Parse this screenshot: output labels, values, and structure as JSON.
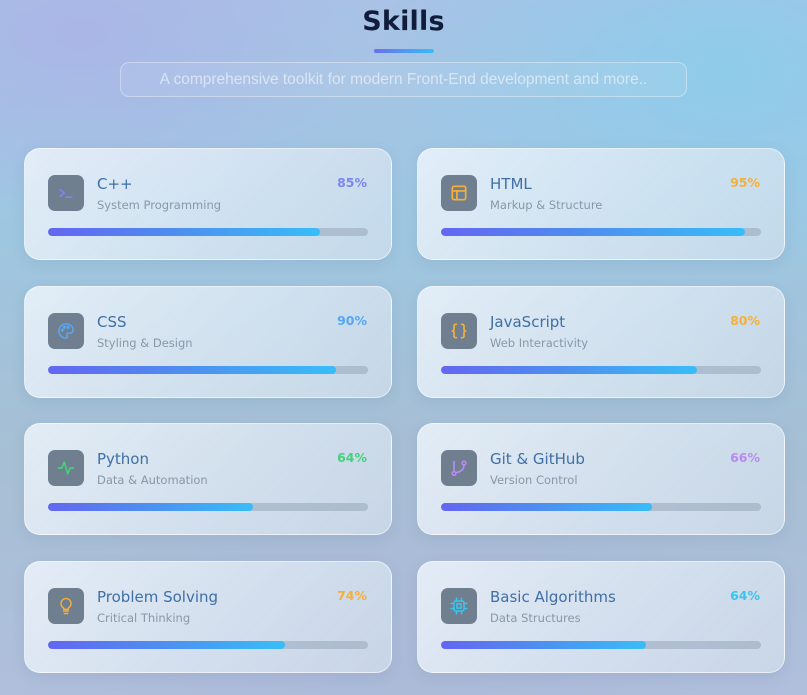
{
  "header": {
    "title": "Skills",
    "subtitle": "A comprehensive toolkit for modern Front-End development and more.."
  },
  "colors": {
    "title": "#111c3a",
    "bar_start": "#6366f1",
    "bar_end": "#38bdf8",
    "icon_bg": "#6f7f90",
    "skill_name": "#3f6fa5"
  },
  "skills": [
    {
      "name": "C++",
      "description": "System Programming",
      "percent_label": "85%",
      "level": 0.85,
      "icon": "terminal-icon",
      "color": "#7b86f0"
    },
    {
      "name": "HTML",
      "description": "Markup & Structure",
      "percent_label": "95%",
      "level": 0.95,
      "icon": "layout-icon",
      "color": "#f5b03a"
    },
    {
      "name": "CSS",
      "description": "Styling & Design",
      "percent_label": "90%",
      "level": 0.9,
      "icon": "palette-icon",
      "color": "#57a6f2"
    },
    {
      "name": "JavaScript",
      "description": "Web Interactivity",
      "percent_label": "80%",
      "level": 0.8,
      "icon": "braces-icon",
      "color": "#f5b03a"
    },
    {
      "name": "Python",
      "description": "Data & Automation",
      "percent_label": "64%",
      "level": 0.64,
      "icon": "activity-icon",
      "color": "#46d07e"
    },
    {
      "name": "Git & GitHub",
      "description": "Version Control",
      "percent_label": "66%",
      "level": 0.66,
      "icon": "git-branch-icon",
      "color": "#b98af2"
    },
    {
      "name": "Problem Solving",
      "description": "Critical Thinking",
      "percent_label": "74%",
      "level": 0.74,
      "icon": "lightbulb-icon",
      "color": "#f5b03a"
    },
    {
      "name": "Basic Algorithms",
      "description": "Data Structures",
      "percent_label": "64%",
      "level": 0.64,
      "icon": "cpu-icon",
      "color": "#3cc4ee"
    }
  ]
}
